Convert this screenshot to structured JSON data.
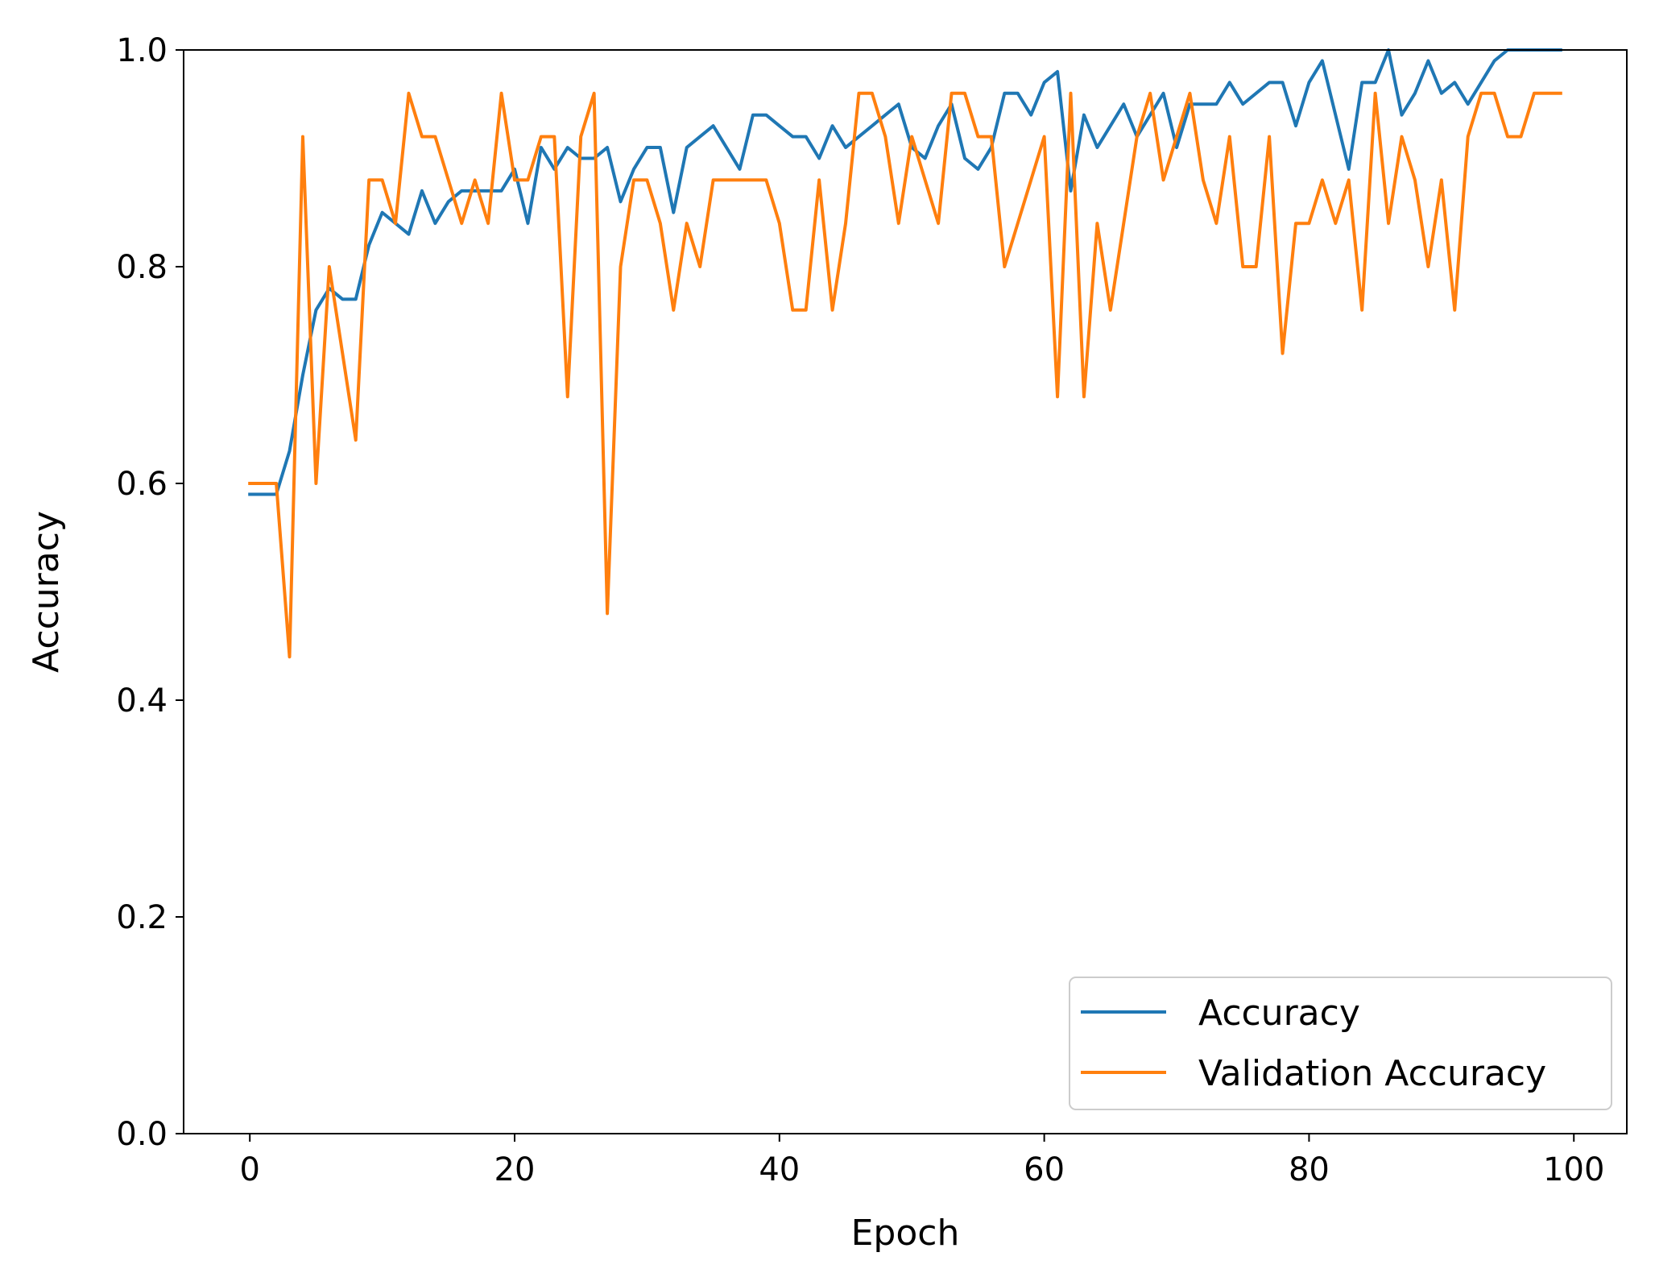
{
  "chart_data": {
    "type": "line",
    "xlabel": "Epoch",
    "ylabel": "Accuracy",
    "xlim": [
      -5,
      104
    ],
    "ylim": [
      0.0,
      1.0
    ],
    "xticks": [
      0,
      20,
      40,
      60,
      80,
      100
    ],
    "yticks": [
      0.0,
      0.2,
      0.4,
      0.6,
      0.8,
      1.0
    ],
    "xtick_labels": [
      "0",
      "20",
      "40",
      "60",
      "80",
      "100"
    ],
    "ytick_labels": [
      "0.0",
      "0.2",
      "0.4",
      "0.6",
      "0.8",
      "1.0"
    ],
    "grid": false,
    "legend_position": "bottom-right",
    "series": [
      {
        "name": "Accuracy",
        "color": "#1f77b4",
        "x": [
          0,
          1,
          2,
          3,
          4,
          5,
          6,
          7,
          8,
          9,
          10,
          11,
          12,
          13,
          14,
          15,
          16,
          17,
          18,
          19,
          20,
          21,
          22,
          23,
          24,
          25,
          26,
          27,
          28,
          29,
          30,
          31,
          32,
          33,
          34,
          35,
          36,
          37,
          38,
          39,
          40,
          41,
          42,
          43,
          44,
          45,
          46,
          47,
          48,
          49,
          50,
          51,
          52,
          53,
          54,
          55,
          56,
          57,
          58,
          59,
          60,
          61,
          62,
          63,
          64,
          65,
          66,
          67,
          68,
          69,
          70,
          71,
          72,
          73,
          74,
          75,
          76,
          77,
          78,
          79,
          80,
          81,
          82,
          83,
          84,
          85,
          86,
          87,
          88,
          89,
          90,
          91,
          92,
          93,
          94,
          95,
          96,
          97,
          98,
          99
        ],
        "values": [
          0.59,
          0.59,
          0.59,
          0.63,
          0.7,
          0.76,
          0.78,
          0.77,
          0.77,
          0.82,
          0.85,
          0.84,
          0.83,
          0.87,
          0.84,
          0.86,
          0.87,
          0.87,
          0.87,
          0.87,
          0.89,
          0.84,
          0.91,
          0.89,
          0.91,
          0.9,
          0.9,
          0.91,
          0.86,
          0.89,
          0.91,
          0.91,
          0.85,
          0.91,
          0.92,
          0.93,
          0.91,
          0.89,
          0.94,
          0.94,
          0.93,
          0.92,
          0.92,
          0.9,
          0.93,
          0.91,
          0.92,
          0.93,
          0.94,
          0.95,
          0.91,
          0.9,
          0.93,
          0.95,
          0.9,
          0.89,
          0.91,
          0.96,
          0.96,
          0.94,
          0.97,
          0.98,
          0.87,
          0.94,
          0.91,
          0.93,
          0.95,
          0.92,
          0.94,
          0.96,
          0.91,
          0.95,
          0.95,
          0.95,
          0.97,
          0.95,
          0.96,
          0.97,
          0.97,
          0.93,
          0.97,
          0.99,
          0.94,
          0.89,
          0.97,
          0.97,
          1.0,
          0.94,
          0.96,
          0.99,
          0.96,
          0.97,
          0.95,
          0.97,
          0.99,
          1.0,
          1.0,
          1.0,
          1.0,
          1.0
        ]
      },
      {
        "name": "Validation Accuracy",
        "color": "#ff7f0e",
        "x": [
          0,
          1,
          2,
          3,
          4,
          5,
          6,
          7,
          8,
          9,
          10,
          11,
          12,
          13,
          14,
          15,
          16,
          17,
          18,
          19,
          20,
          21,
          22,
          23,
          24,
          25,
          26,
          27,
          28,
          29,
          30,
          31,
          32,
          33,
          34,
          35,
          36,
          37,
          38,
          39,
          40,
          41,
          42,
          43,
          44,
          45,
          46,
          47,
          48,
          49,
          50,
          51,
          52,
          53,
          54,
          55,
          56,
          57,
          58,
          59,
          60,
          61,
          62,
          63,
          64,
          65,
          66,
          67,
          68,
          69,
          70,
          71,
          72,
          73,
          74,
          75,
          76,
          77,
          78,
          79,
          80,
          81,
          82,
          83,
          84,
          85,
          86,
          87,
          88,
          89,
          90,
          91,
          92,
          93,
          94,
          95,
          96,
          97,
          98,
          99
        ],
        "values": [
          0.6,
          0.6,
          0.6,
          0.44,
          0.92,
          0.6,
          0.8,
          0.72,
          0.64,
          0.88,
          0.88,
          0.84,
          0.96,
          0.92,
          0.92,
          0.88,
          0.84,
          0.88,
          0.84,
          0.96,
          0.88,
          0.88,
          0.92,
          0.92,
          0.68,
          0.92,
          0.96,
          0.48,
          0.8,
          0.88,
          0.88,
          0.84,
          0.76,
          0.84,
          0.8,
          0.88,
          0.88,
          0.88,
          0.88,
          0.88,
          0.84,
          0.76,
          0.76,
          0.88,
          0.76,
          0.84,
          0.96,
          0.96,
          0.92,
          0.84,
          0.92,
          0.88,
          0.84,
          0.96,
          0.96,
          0.92,
          0.92,
          0.8,
          0.84,
          0.88,
          0.92,
          0.68,
          0.96,
          0.68,
          0.84,
          0.76,
          0.84,
          0.92,
          0.96,
          0.88,
          0.92,
          0.96,
          0.88,
          0.84,
          0.92,
          0.8,
          0.8,
          0.92,
          0.72,
          0.84,
          0.84,
          0.88,
          0.84,
          0.88,
          0.76,
          0.96,
          0.84,
          0.92,
          0.88,
          0.8,
          0.88,
          0.76,
          0.92,
          0.96,
          0.96,
          0.92,
          0.92,
          0.96,
          0.96,
          0.96
        ]
      }
    ]
  }
}
